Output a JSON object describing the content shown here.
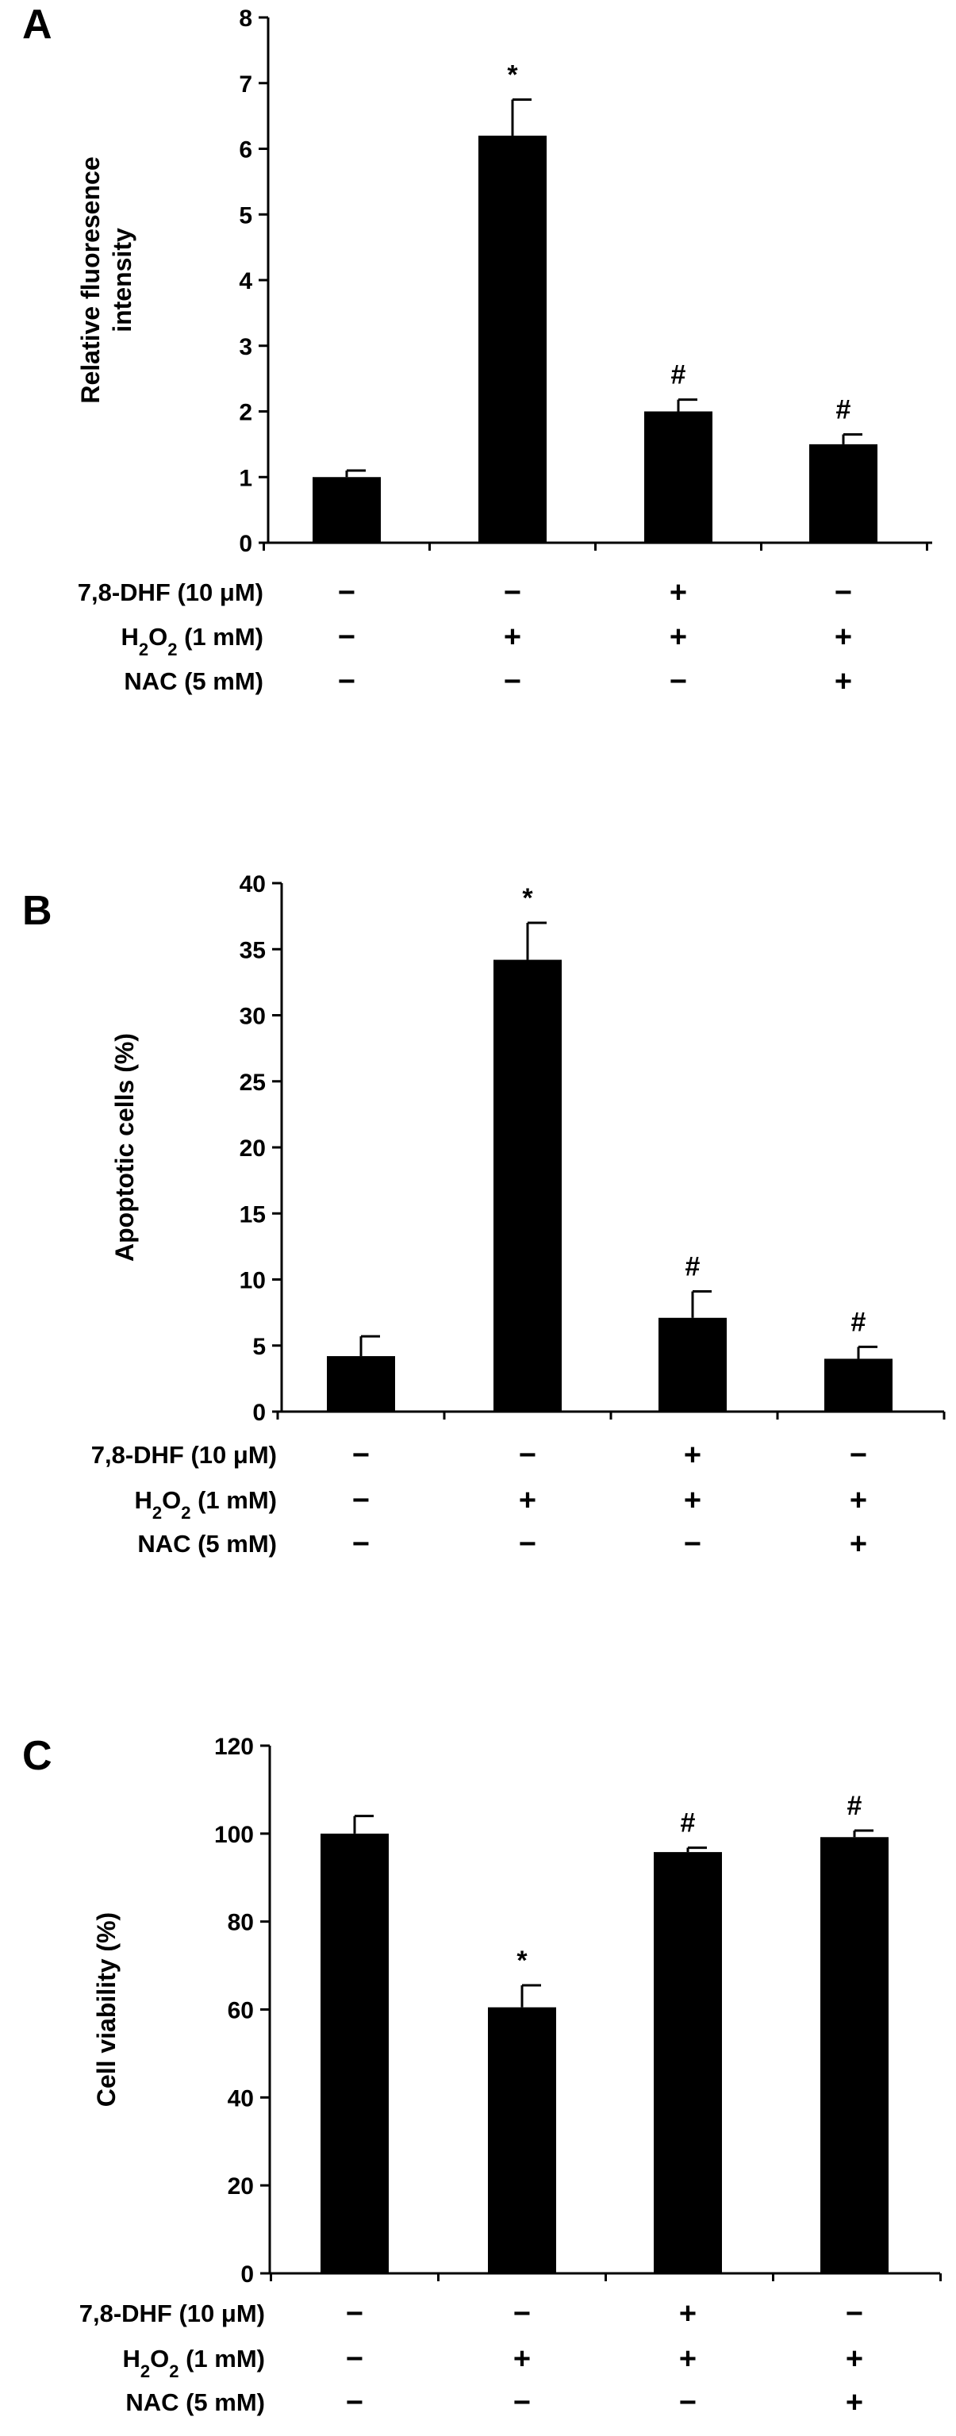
{
  "chart_data": [
    {
      "type": "bar",
      "panel": "A",
      "ylabel_lines": [
        "Relative fluoresence",
        "intensity"
      ],
      "ylim": [
        0,
        8
      ],
      "yticks": [
        0,
        1,
        2,
        3,
        4,
        5,
        6,
        7,
        8
      ],
      "values": [
        1.0,
        6.2,
        2.0,
        1.5
      ],
      "errors": [
        0.1,
        0.55,
        0.18,
        0.15
      ],
      "annotations": [
        "",
        "*",
        "#",
        "#"
      ],
      "conditions": [
        {
          "label": "7,8-DHF (10 μM)",
          "signs": [
            "−",
            "−",
            "+",
            "−"
          ]
        },
        {
          "label_pre": "H",
          "label_sub": "2",
          "label_mid": "O",
          "label_sub2": "2",
          "label_post": "  (1 mM)",
          "signs": [
            "−",
            "+",
            "+",
            "+"
          ]
        },
        {
          "label": "NAC (5 mM)",
          "signs": [
            "−",
            "−",
            "−",
            "+"
          ]
        }
      ]
    },
    {
      "type": "bar",
      "panel": "B",
      "ylabel_lines": [
        "Apoptotic cells (%)"
      ],
      "ylim": [
        0,
        40
      ],
      "yticks": [
        0,
        5,
        10,
        15,
        20,
        25,
        30,
        35,
        40
      ],
      "values": [
        4.2,
        34.2,
        7.1,
        4.0
      ],
      "errors": [
        1.5,
        2.8,
        2.0,
        0.9
      ],
      "annotations": [
        "",
        "*",
        "#",
        "#"
      ],
      "conditions": [
        {
          "label": "7,8-DHF (10 μM)",
          "signs": [
            "−",
            "−",
            "+",
            "−"
          ]
        },
        {
          "label_pre": "H",
          "label_sub": "2",
          "label_mid": "O",
          "label_sub2": "2",
          "label_post": "  (1 mM)",
          "signs": [
            "−",
            "+",
            "+",
            "+"
          ]
        },
        {
          "label": "NAC (5 mM)",
          "signs": [
            "−",
            "−",
            "−",
            "+"
          ]
        }
      ]
    },
    {
      "type": "bar",
      "panel": "C",
      "ylabel_lines": [
        "Cell viability (%)"
      ],
      "ylim": [
        0,
        120
      ],
      "yticks": [
        0,
        20,
        40,
        60,
        80,
        100,
        120
      ],
      "values": [
        100,
        60.5,
        95.8,
        99.2
      ],
      "errors": [
        4,
        5,
        1,
        1.5
      ],
      "annotations": [
        "",
        "*",
        "#",
        "#"
      ],
      "conditions": [
        {
          "label": "7,8-DHF (10 μM)",
          "signs": [
            "−",
            "−",
            "+",
            "−"
          ]
        },
        {
          "label_pre": "H",
          "label_sub": "2",
          "label_mid": "O",
          "label_sub2": "2",
          "label_post": "  (1 mM)",
          "signs": [
            "−",
            "+",
            "+",
            "+"
          ]
        },
        {
          "label": "NAC (5 mM)",
          "signs": [
            "−",
            "−",
            "−",
            "+"
          ]
        }
      ]
    }
  ]
}
